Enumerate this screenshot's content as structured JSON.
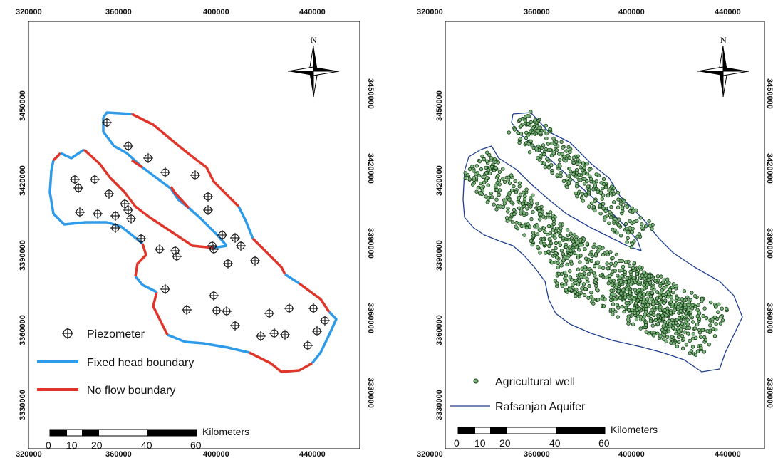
{
  "left_map": {
    "x_ticks": [
      "320000",
      "360000",
      "400000",
      "440000"
    ],
    "y_ticks": [
      "3450000",
      "3420000",
      "3390000",
      "3360000",
      "3330000"
    ],
    "north": "N",
    "legend": {
      "piezometer": "Piezometer",
      "fixed_head": "Fixed head boundary",
      "no_flow": "No flow boundary"
    },
    "scale": {
      "unit": "Kilometers",
      "labels": [
        "0",
        "10",
        "20",
        "40",
        "60"
      ]
    },
    "colors": {
      "fixed_head": "#2e9bea",
      "no_flow": "#e0352a",
      "symbol": "#111111"
    }
  },
  "right_map": {
    "x_ticks": [
      "320000",
      "360000",
      "400000",
      "440000"
    ],
    "y_ticks": [
      "3450000",
      "3420000",
      "3390000",
      "3360000",
      "3330000"
    ],
    "north": "N",
    "legend": {
      "well": "Agricultural well",
      "aquifer": "Rafsanjan Aquifer"
    },
    "scale": {
      "unit": "Kilometers",
      "labels": [
        "0",
        "10",
        "20",
        "40",
        "60"
      ]
    },
    "colors": {
      "aquifer": "#1f3f8f",
      "well_fill": "#7fb37f",
      "well_stroke": "#0f3a0f"
    }
  }
}
